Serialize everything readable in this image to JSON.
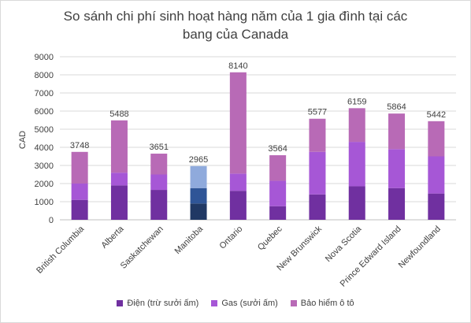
{
  "chart_data": {
    "type": "bar",
    "stacked": true,
    "title_lines": [
      "So sánh chi phí sinh hoạt hàng năm của 1 gia đình tại các",
      "bang của Canada"
    ],
    "ylabel": "CAD",
    "xlabel": "",
    "ylim": [
      0,
      9000
    ],
    "yticks": [
      "0",
      "1000",
      "2000",
      "3000",
      "4000",
      "5000",
      "6000",
      "7000",
      "8000",
      "9000"
    ],
    "gridlines": true,
    "legend_position": "bottom",
    "categories": [
      "British Columbia",
      "Alberta",
      "Saskatchewan",
      "Manitoba",
      "Ontario",
      "Quebec",
      "New Brunswick",
      "Nova Scotia",
      "Prince Edward Island",
      "Newfoundland"
    ],
    "totals": [
      "3748",
      "5488",
      "3651",
      "2965",
      "8140",
      "3564",
      "5577",
      "6159",
      "5864",
      "5442"
    ],
    "series": [
      {
        "name": "Điện (trừ sưởi ấm)",
        "color": "#7030a0",
        "values": [
          1100,
          1900,
          1650,
          900,
          1600,
          750,
          1400,
          1850,
          1750,
          1450
        ]
      },
      {
        "name": "Gas (sưởi ấm)",
        "color": "#a657d6",
        "values": [
          900,
          700,
          850,
          850,
          950,
          1400,
          2350,
          2450,
          2150,
          2050
        ]
      },
      {
        "name": "Bảo hiểm ô tô",
        "color": "#b86ab6",
        "values": [
          1748,
          2888,
          1151,
          1215,
          5590,
          1414,
          1827,
          1859,
          1964,
          1942
        ]
      }
    ],
    "special_colors": {
      "Manitoba": [
        "#203864",
        "#2f5597",
        "#8faadc"
      ]
    }
  }
}
